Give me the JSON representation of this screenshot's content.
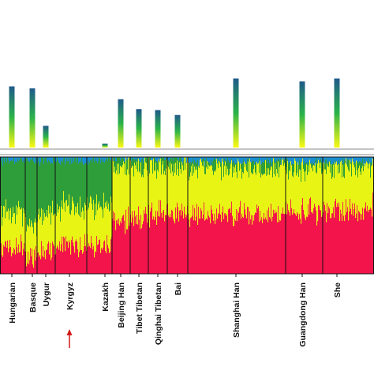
{
  "chart_data": {
    "type": "bar",
    "title": "",
    "xlabel": "",
    "ylabel": "",
    "grid": false,
    "legend": "none",
    "ancestry_components": [
      {
        "name": "",
        "color": "#1a8fd0"
      },
      {
        "name": "",
        "color": "#2e9e3a"
      },
      {
        "name": "",
        "color": "#e8f514"
      },
      {
        "name": "",
        "color": "#f2144b"
      }
    ],
    "gradient_colors": [
      "#1f5a8a",
      "#2bb34a",
      "#fbf914"
    ],
    "populations": [
      {
        "label": "Hungarian",
        "bar_value": 0.62,
        "mix": [
          0.03,
          0.45,
          0.3,
          0.22
        ]
      },
      {
        "label": "Basque",
        "bar_value": 0.6,
        "mix": [
          0.03,
          0.55,
          0.27,
          0.15
        ]
      },
      {
        "label": "Uygur",
        "bar_value": 0.22,
        "mix": [
          0.03,
          0.45,
          0.3,
          0.22
        ]
      },
      {
        "label": "Kyrgyz",
        "bar_value": 0.0,
        "mix": [
          0.03,
          0.4,
          0.33,
          0.24
        ]
      },
      {
        "label": "Kazakh",
        "bar_value": 0.04,
        "mix": [
          0.03,
          0.38,
          0.35,
          0.24
        ]
      },
      {
        "label": "Beijing Han",
        "bar_value": 0.49,
        "mix": [
          0.02,
          0.08,
          0.45,
          0.45
        ]
      },
      {
        "label": "Tibet Tibetan",
        "bar_value": 0.39,
        "mix": [
          0.02,
          0.08,
          0.42,
          0.48
        ]
      },
      {
        "label": "Qinghai Tibetan",
        "bar_value": 0.38,
        "mix": [
          0.02,
          0.06,
          0.42,
          0.5
        ]
      },
      {
        "label": "Bai",
        "bar_value": 0.33,
        "mix": [
          0.02,
          0.06,
          0.4,
          0.52
        ]
      },
      {
        "label": "Shanghai Han",
        "bar_value": 0.7,
        "mix": [
          0.04,
          0.05,
          0.4,
          0.51
        ]
      },
      {
        "label": "Guangdong Han",
        "bar_value": 0.67,
        "mix": [
          0.04,
          0.05,
          0.38,
          0.53
        ]
      },
      {
        "label": "She",
        "bar_value": 0.7,
        "mix": [
          0.04,
          0.05,
          0.36,
          0.55
        ]
      }
    ],
    "highlight": {
      "label": "Kyrgyz",
      "marker": "arrow",
      "color": "#d11a1a"
    }
  }
}
